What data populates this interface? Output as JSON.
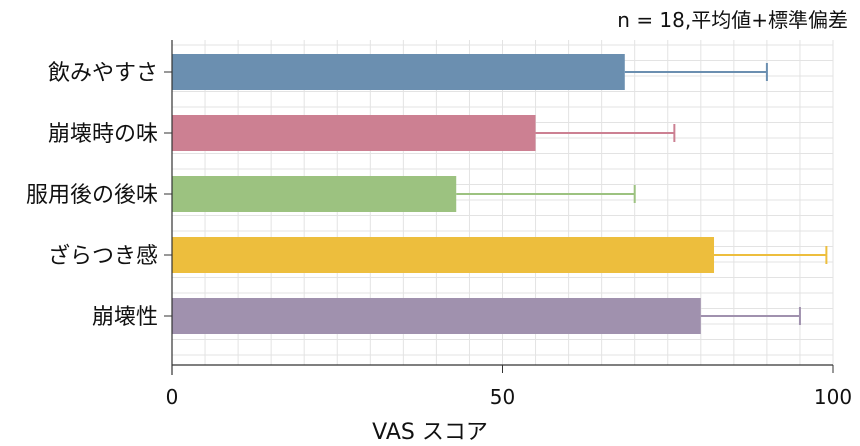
{
  "chart_data": {
    "type": "bar",
    "orientation": "horizontal",
    "annotation": "n = 18,平均値+標準偏差",
    "categories": [
      "飲みやすさ",
      "崩壊時の味",
      "服用後の後味",
      "ざらつき感",
      "崩壊性"
    ],
    "values": [
      68.5,
      55,
      43,
      82,
      80
    ],
    "errors": [
      21.5,
      21,
      27,
      17,
      15
    ],
    "colors": [
      "#6b8fb0",
      "#cc8092",
      "#9cc280",
      "#edbe3d",
      "#a091ae"
    ],
    "xlabel": "VAS スコア",
    "ylabel": "",
    "xlim": [
      0,
      100
    ],
    "xticks": [
      0,
      50,
      100
    ],
    "grid": true
  }
}
